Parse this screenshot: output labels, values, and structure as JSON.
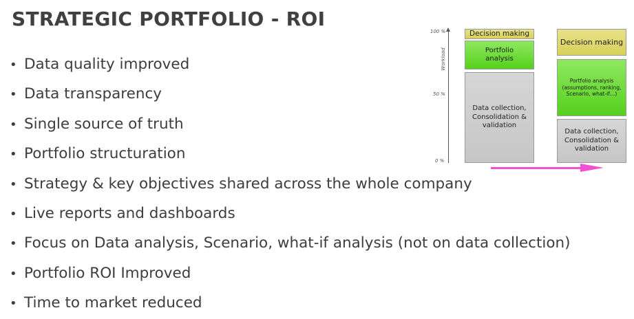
{
  "slide": {
    "title": "STRATEGIC PORTFOLIO - ROI",
    "bullet_char": "•",
    "bullets": [
      "Data quality improved",
      "Data transparency",
      "Single source of truth",
      "Portfolio structuration",
      "Strategy & key objectives shared across the whole company",
      "Live reports and dashboards",
      "Focus on Data analysis, Scenario, what-if analysis (not on data collection)",
      "Portfolio ROI Improved",
      "Time to market reduced"
    ]
  },
  "diagram": {
    "axis_label": "Workload",
    "ticks": [
      "100 %",
      "50 %",
      "0 %"
    ],
    "before": {
      "decision": "Decision making",
      "analysis": "Portfolio analysis",
      "collection": "Data collection, Consolidation & validation"
    },
    "after": {
      "decision": "Decision making",
      "analysis": "Portfolio analysis (assumptions, ranking, Scenario, what-if…)",
      "collection": "Data collection, Consolidation & validation"
    },
    "colors": {
      "decision": "#dcd566",
      "analysis": "#5fd424",
      "collection": "#cccccc",
      "arrow": "#f24fd2"
    }
  }
}
